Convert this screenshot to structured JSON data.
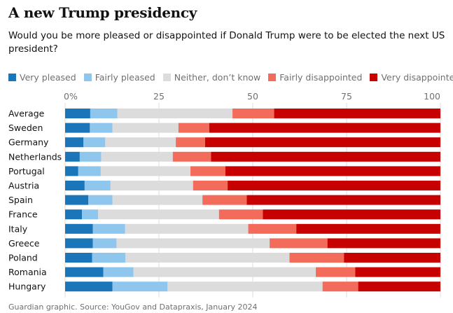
{
  "header": {
    "title": "A new Trump presidency",
    "subtitle": "Would you be more pleased or disappointed if Donald Trump were to be elected the next US president?"
  },
  "footer": {
    "source": "Guardian graphic. Source: YouGov and Datapraxis, January 2024"
  },
  "chart_data": {
    "type": "bar",
    "orientation": "horizontal-stacked-100",
    "title": "A new Trump presidency",
    "xlim": [
      0,
      100
    ],
    "xticks": [
      0,
      25,
      50,
      75,
      100
    ],
    "xtick_labels": [
      "0%",
      "25",
      "50",
      "75",
      "100"
    ],
    "legend_position": "top",
    "categories": [
      "Average",
      "Sweden",
      "Germany",
      "Netherlands",
      "Portugal",
      "Austria",
      "Spain",
      "France",
      "Italy",
      "Greece",
      "Poland",
      "Romania",
      "Hungary"
    ],
    "series": [
      {
        "name": "Very pleased",
        "color": "#1a75b9",
        "values": [
          6.7,
          6.6,
          4.9,
          3.9,
          3.5,
          5.2,
          6.2,
          4.5,
          7.4,
          7.4,
          7.2,
          10.2,
          12.6
        ]
      },
      {
        "name": "Fairly pleased",
        "color": "#8fc6ee",
        "values": [
          7.2,
          6.0,
          5.8,
          5.7,
          6.0,
          6.9,
          6.4,
          4.3,
          8.6,
          6.3,
          8.9,
          8.0,
          14.7
        ]
      },
      {
        "name": "Neither, don’t know",
        "color": "#dcdcdc",
        "values": [
          30.7,
          17.6,
          18.8,
          19.1,
          23.9,
          22.0,
          24.0,
          32.2,
          32.8,
          40.8,
          43.7,
          48.6,
          41.3
        ]
      },
      {
        "name": "Fairly disappointed",
        "color": "#f26b5b",
        "values": [
          11.1,
          8.2,
          7.8,
          10.2,
          9.3,
          9.2,
          11.8,
          11.7,
          12.8,
          15.4,
          14.5,
          10.5,
          9.5
        ]
      },
      {
        "name": "Very disappointed",
        "color": "#c70000",
        "values": [
          44.3,
          61.6,
          62.7,
          61.1,
          57.3,
          56.7,
          51.6,
          47.3,
          38.4,
          30.1,
          25.7,
          22.7,
          21.9
        ]
      }
    ]
  }
}
